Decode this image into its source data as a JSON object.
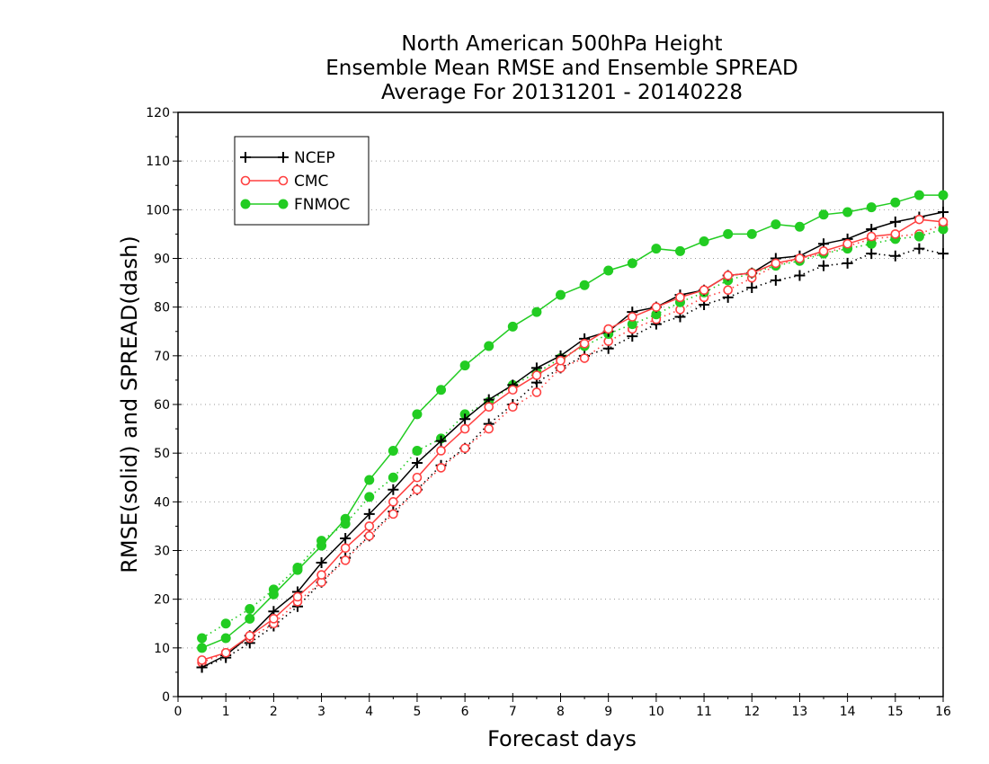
{
  "chart_data": {
    "type": "line",
    "title": [
      "North American 500hPa Height",
      "Ensemble Mean RMSE and Ensemble SPREAD",
      "Average For 20131201 - 20140228"
    ],
    "xlabel": "Forecast days",
    "ylabel": "RMSE(solid) and SPREAD(dash)",
    "xlim": [
      0,
      16
    ],
    "ylim": [
      0,
      120
    ],
    "xticks": [
      0,
      1,
      2,
      3,
      4,
      5,
      6,
      7,
      8,
      9,
      10,
      11,
      12,
      13,
      14,
      15,
      16
    ],
    "yticks": [
      0,
      10,
      20,
      30,
      40,
      50,
      60,
      70,
      80,
      90,
      100,
      110,
      120
    ],
    "grid": "horizontal dotted",
    "legend_position": "top-left",
    "x": [
      0.5,
      1,
      1.5,
      2,
      2.5,
      3,
      3.5,
      4,
      4.5,
      5,
      5.5,
      6,
      6.5,
      7,
      7.5,
      8,
      8.5,
      9,
      9.5,
      10,
      10.5,
      11,
      11.5,
      12,
      12.5,
      13,
      13.5,
      14,
      14.5,
      15,
      15.5,
      16
    ],
    "series": [
      {
        "name": "NCEP",
        "kind": "rmse",
        "style": "solid",
        "marker": "plus",
        "color": "#000000",
        "values": [
          6,
          8.5,
          12.5,
          17.5,
          21.5,
          27.5,
          32.5,
          37.5,
          42.5,
          48,
          52.5,
          57,
          61,
          64,
          67.5,
          70,
          73.5,
          75,
          79,
          80,
          82.5,
          83.5,
          86.5,
          87,
          90,
          90.5,
          93,
          94,
          96,
          97.5,
          98.5,
          99.5
        ]
      },
      {
        "name": "CMC",
        "kind": "rmse",
        "style": "solid",
        "marker": "open-circle",
        "color": "#ff4040",
        "values": [
          7.5,
          9,
          12.5,
          16,
          20.5,
          25,
          30.5,
          35,
          40,
          45,
          50.5,
          55,
          59.5,
          63,
          66,
          69,
          72.5,
          75.5,
          78,
          80,
          82,
          83.5,
          86.5,
          87,
          89,
          90,
          91.5,
          93,
          94.5,
          95,
          98,
          97.5
        ]
      },
      {
        "name": "FNMOC",
        "kind": "rmse",
        "style": "solid",
        "marker": "filled-circle",
        "color": "#22cc22",
        "values": [
          10,
          12,
          16,
          21,
          26,
          31,
          36.5,
          44.5,
          50.5,
          58,
          63,
          68,
          72,
          76,
          79,
          82.5,
          84.5,
          87.5,
          89,
          92,
          91.5,
          93.5,
          95,
          95,
          97,
          96.5,
          99,
          99.5,
          100.5,
          101.5,
          103,
          103
        ]
      },
      {
        "name": "NCEP",
        "kind": "spread",
        "style": "dotted",
        "marker": "plus",
        "color": "#000000",
        "values": [
          6,
          8,
          11,
          14.5,
          18.5,
          23.5,
          28.5,
          33,
          38,
          42.5,
          47.5,
          51,
          56,
          60,
          64.5,
          67.5,
          70,
          71.5,
          74,
          76.5,
          78,
          80.5,
          82,
          84,
          85.5,
          86.5,
          88.5,
          89,
          91,
          90.5,
          92,
          91
        ]
      },
      {
        "name": "CMC",
        "kind": "spread",
        "style": "dotted",
        "marker": "open-circle",
        "color": "#ff4040",
        "values": [
          7,
          9,
          12,
          15,
          19.5,
          23.5,
          28,
          33,
          37.5,
          42.5,
          47,
          51,
          55,
          59.5,
          62.5,
          67.5,
          69.5,
          73,
          75.5,
          77.5,
          79.5,
          82,
          83.5,
          86,
          88.5,
          90,
          91,
          92.5,
          94,
          94.5,
          95,
          97
        ]
      },
      {
        "name": "FNMOC",
        "kind": "spread",
        "style": "dotted",
        "marker": "filled-circle",
        "color": "#22cc22",
        "values": [
          12,
          15,
          18,
          22,
          26.5,
          32,
          35.5,
          41,
          45,
          50.5,
          53,
          58,
          60.5,
          64,
          66.5,
          69.5,
          72,
          74.5,
          76.5,
          78.5,
          81,
          83,
          85.5,
          87,
          88.5,
          89.5,
          91,
          92,
          93,
          94,
          94.5,
          96
        ]
      }
    ],
    "legend": [
      "NCEP",
      "CMC",
      "FNMOC"
    ]
  }
}
